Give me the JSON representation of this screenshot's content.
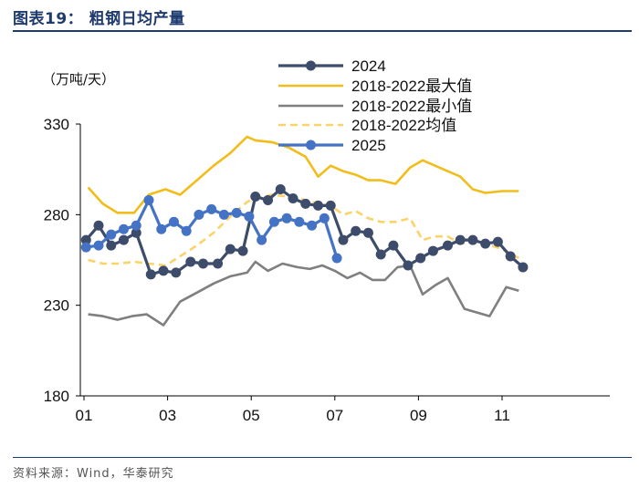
{
  "header": {
    "title": "图表19：  粗钢日均产量"
  },
  "footer": {
    "source": "资料来源：Wind，华泰研究"
  },
  "chart_data": {
    "type": "line",
    "title": "粗钢日均产量",
    "unit_label": "（万吨/天）",
    "ylim": [
      180,
      330
    ],
    "yticks": [
      180,
      230,
      280,
      330
    ],
    "xlim": [
      0,
      12.3
    ],
    "xticks": [
      {
        "value": 0,
        "label": "01"
      },
      {
        "value": 2,
        "label": "03"
      },
      {
        "value": 4,
        "label": "05"
      },
      {
        "value": 6,
        "label": "07"
      },
      {
        "value": 8,
        "label": "09"
      },
      {
        "value": 10,
        "label": "11"
      }
    ],
    "series": [
      {
        "name": "2024",
        "color": "#3d4c6b",
        "style": "solid-marker",
        "points": [
          [
            0.05,
            266
          ],
          [
            0.35,
            274
          ],
          [
            0.65,
            263
          ],
          [
            0.95,
            266
          ],
          [
            1.25,
            270
          ],
          [
            1.6,
            247
          ],
          [
            1.9,
            249
          ],
          [
            2.2,
            248
          ],
          [
            2.55,
            254
          ],
          [
            2.85,
            253
          ],
          [
            3.2,
            253
          ],
          [
            3.5,
            261
          ],
          [
            3.8,
            260
          ],
          [
            4.1,
            290
          ],
          [
            4.4,
            288
          ],
          [
            4.7,
            294
          ],
          [
            5.0,
            289
          ],
          [
            5.3,
            286
          ],
          [
            5.6,
            285
          ],
          [
            5.9,
            285
          ],
          [
            6.2,
            266
          ],
          [
            6.5,
            271
          ],
          [
            6.8,
            270
          ],
          [
            7.1,
            258
          ],
          [
            7.4,
            263
          ],
          [
            7.75,
            252
          ],
          [
            8.05,
            256
          ],
          [
            8.35,
            260
          ],
          [
            8.7,
            263
          ],
          [
            9.0,
            266
          ],
          [
            9.3,
            266
          ],
          [
            9.6,
            264
          ],
          [
            9.9,
            265
          ],
          [
            10.2,
            257
          ],
          [
            10.5,
            251
          ]
        ]
      },
      {
        "name": "2018-2022最大值",
        "color": "#f2bd1a",
        "style": "solid",
        "points": [
          [
            0.1,
            295
          ],
          [
            0.45,
            286
          ],
          [
            0.8,
            281
          ],
          [
            1.2,
            281
          ],
          [
            1.55,
            291
          ],
          [
            1.95,
            294
          ],
          [
            2.3,
            291
          ],
          [
            2.7,
            299
          ],
          [
            3.1,
            307
          ],
          [
            3.5,
            314
          ],
          [
            3.9,
            323
          ],
          [
            4.1,
            321
          ],
          [
            4.5,
            320
          ],
          [
            4.9,
            317
          ],
          [
            5.3,
            312
          ],
          [
            5.6,
            301
          ],
          [
            5.9,
            307
          ],
          [
            6.2,
            304
          ],
          [
            6.5,
            302
          ],
          [
            6.8,
            299
          ],
          [
            7.1,
            299
          ],
          [
            7.45,
            297
          ],
          [
            7.8,
            306
          ],
          [
            8.1,
            310
          ],
          [
            8.4,
            307
          ],
          [
            8.7,
            304
          ],
          [
            9.0,
            301
          ],
          [
            9.3,
            294
          ],
          [
            9.6,
            292
          ],
          [
            10.0,
            293
          ],
          [
            10.4,
            293
          ]
        ]
      },
      {
        "name": "2018-2022最小值",
        "color": "#7f7f7f",
        "style": "solid",
        "points": [
          [
            0.1,
            225
          ],
          [
            0.45,
            224
          ],
          [
            0.8,
            222
          ],
          [
            1.15,
            224
          ],
          [
            1.5,
            225
          ],
          [
            1.9,
            219
          ],
          [
            2.3,
            232
          ],
          [
            2.7,
            237
          ],
          [
            3.1,
            242
          ],
          [
            3.5,
            246
          ],
          [
            3.9,
            248
          ],
          [
            4.1,
            254
          ],
          [
            4.4,
            249
          ],
          [
            4.75,
            253
          ],
          [
            5.1,
            251
          ],
          [
            5.4,
            250
          ],
          [
            5.7,
            252
          ],
          [
            6.0,
            249
          ],
          [
            6.3,
            245
          ],
          [
            6.6,
            248
          ],
          [
            6.9,
            244
          ],
          [
            7.2,
            244
          ],
          [
            7.5,
            251
          ],
          [
            7.8,
            252
          ],
          [
            8.1,
            236
          ],
          [
            8.4,
            241
          ],
          [
            8.7,
            245
          ],
          [
            9.1,
            228
          ],
          [
            9.4,
            226
          ],
          [
            9.7,
            224
          ],
          [
            10.1,
            240
          ],
          [
            10.4,
            238
          ]
        ]
      },
      {
        "name": "2018-2022均值",
        "color": "#fad36a",
        "style": "dashed",
        "points": [
          [
            0.1,
            255
          ],
          [
            0.45,
            253
          ],
          [
            0.8,
            253
          ],
          [
            1.2,
            254
          ],
          [
            1.55,
            253
          ],
          [
            1.95,
            252
          ],
          [
            2.3,
            257
          ],
          [
            2.7,
            263
          ],
          [
            3.1,
            270
          ],
          [
            3.5,
            279
          ],
          [
            3.9,
            287
          ],
          [
            4.1,
            289
          ],
          [
            4.5,
            291
          ],
          [
            4.9,
            290
          ],
          [
            5.3,
            288
          ],
          [
            5.6,
            286
          ],
          [
            5.9,
            285
          ],
          [
            6.2,
            280
          ],
          [
            6.5,
            282
          ],
          [
            6.8,
            278
          ],
          [
            7.1,
            276
          ],
          [
            7.45,
            276
          ],
          [
            7.8,
            278
          ],
          [
            8.1,
            266
          ],
          [
            8.4,
            268
          ],
          [
            8.7,
            268
          ],
          [
            9.0,
            264
          ],
          [
            9.3,
            265
          ],
          [
            9.6,
            264
          ],
          [
            10.0,
            261
          ],
          [
            10.4,
            256
          ]
        ]
      },
      {
        "name": "2025",
        "color": "#4472c4",
        "style": "solid-marker",
        "points": [
          [
            0.05,
            262
          ],
          [
            0.35,
            263
          ],
          [
            0.65,
            269
          ],
          [
            0.95,
            272
          ],
          [
            1.25,
            274
          ],
          [
            1.55,
            288
          ],
          [
            1.85,
            272
          ],
          [
            2.15,
            276
          ],
          [
            2.45,
            271
          ],
          [
            2.75,
            280
          ],
          [
            3.05,
            283
          ],
          [
            3.35,
            280
          ],
          [
            3.65,
            281
          ],
          [
            3.95,
            279
          ],
          [
            4.25,
            266
          ],
          [
            4.55,
            276
          ],
          [
            4.85,
            278
          ],
          [
            5.15,
            276
          ],
          [
            5.45,
            274
          ],
          [
            5.75,
            278
          ],
          [
            6.05,
            256
          ]
        ]
      }
    ]
  }
}
